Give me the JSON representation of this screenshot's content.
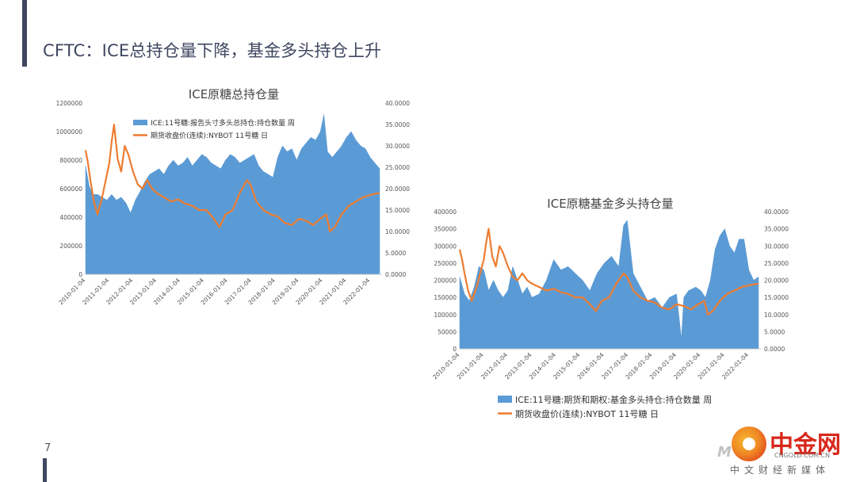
{
  "slide": {
    "title": "CFTC：ICE总持仓量下降，基金多头持仓上升",
    "page_number": "7"
  },
  "logo": {
    "name_cn": "中金网",
    "url": "CNGOLD.COM.CN",
    "subtitle": "中文财经新媒体",
    "brand_colors": [
      "#d9271c",
      "#f08a24",
      "#f7b733"
    ]
  },
  "colors": {
    "bars": "#5b9bd5",
    "line": "#ed7d31",
    "accent": "#3f4660"
  },
  "chart_data": [
    {
      "type": "area",
      "title": "ICE原糖总持仓量",
      "x_tick_labels": [
        "2010-01-04",
        "2011-01-04",
        "2012-01-04",
        "2013-01-04",
        "2014-01-04",
        "2015-01-04",
        "2016-01-04",
        "2017-01-04",
        "2018-01-04",
        "2019-01-04",
        "2020-01-04",
        "2021-01-04",
        "2022-01-04"
      ],
      "x_range": [
        2010.0,
        2022.5
      ],
      "y_left_ticks": [
        "0",
        "200000",
        "400000",
        "600000",
        "800000",
        "1000000",
        "1200000"
      ],
      "y_left_range": [
        0,
        1200000
      ],
      "y_right_ticks": [
        "0.0000",
        "5.0000",
        "10.0000",
        "15.0000",
        "20.0000",
        "25.0000",
        "30.0000",
        "35.0000",
        "40.0000"
      ],
      "y_right_range": [
        0,
        40
      ],
      "legend_position": "top-left (inside plot)",
      "series": [
        {
          "name": "ICE:11号糖:报告头寸多头总持仓:持仓数量 周",
          "kind": "area",
          "axis": "left",
          "color": "#5b9bd5",
          "x": [
            2010.0,
            2010.15,
            2010.3,
            2010.5,
            2010.7,
            2010.9,
            2011.1,
            2011.3,
            2011.5,
            2011.7,
            2011.9,
            2012.1,
            2012.3,
            2012.5,
            2012.7,
            2012.9,
            2013.1,
            2013.3,
            2013.5,
            2013.7,
            2013.9,
            2014.1,
            2014.3,
            2014.5,
            2014.7,
            2014.9,
            2015.1,
            2015.3,
            2015.5,
            2015.7,
            2015.9,
            2016.1,
            2016.3,
            2016.5,
            2016.7,
            2016.9,
            2017.1,
            2017.3,
            2017.5,
            2017.7,
            2017.9,
            2018.1,
            2018.3,
            2018.5,
            2018.7,
            2018.9,
            2019.1,
            2019.3,
            2019.5,
            2019.7,
            2019.9,
            2020.05,
            2020.2,
            2020.4,
            2020.6,
            2020.8,
            2021.0,
            2021.2,
            2021.4,
            2021.6,
            2021.8,
            2022.0,
            2022.2,
            2022.4
          ],
          "y": [
            760000,
            620000,
            560000,
            560000,
            540000,
            520000,
            560000,
            520000,
            540000,
            500000,
            430000,
            520000,
            580000,
            650000,
            700000,
            720000,
            740000,
            700000,
            760000,
            800000,
            760000,
            780000,
            820000,
            760000,
            800000,
            840000,
            820000,
            780000,
            760000,
            740000,
            800000,
            840000,
            820000,
            780000,
            800000,
            820000,
            840000,
            760000,
            720000,
            700000,
            680000,
            820000,
            900000,
            860000,
            880000,
            800000,
            880000,
            920000,
            960000,
            940000,
            1000000,
            1120000,
            860000,
            820000,
            860000,
            900000,
            960000,
            1000000,
            940000,
            900000,
            880000,
            820000,
            780000,
            740000
          ]
        },
        {
          "name": "期货收盘价(连续):NYBOT 11号糖 日",
          "kind": "line",
          "axis": "right",
          "color": "#ed7d31",
          "x": [
            2010.0,
            2010.1,
            2010.2,
            2010.35,
            2010.5,
            2010.7,
            2010.85,
            2011.0,
            2011.1,
            2011.2,
            2011.35,
            2011.5,
            2011.65,
            2011.8,
            2012.0,
            2012.2,
            2012.4,
            2012.6,
            2012.8,
            2013.0,
            2013.3,
            2013.6,
            2013.9,
            2014.2,
            2014.5,
            2014.8,
            2015.1,
            2015.4,
            2015.65,
            2015.9,
            2016.2,
            2016.5,
            2016.8,
            2016.95,
            2017.2,
            2017.5,
            2017.8,
            2018.1,
            2018.4,
            2018.7,
            2019.0,
            2019.3,
            2019.6,
            2019.9,
            2020.15,
            2020.3,
            2020.5,
            2020.8,
            2021.1,
            2021.4,
            2021.7,
            2022.0,
            2022.2,
            2022.4
          ],
          "y": [
            29,
            26,
            22,
            17,
            14,
            18,
            22,
            26,
            31,
            35,
            27,
            24,
            30,
            28,
            24,
            21,
            20,
            22,
            20,
            19,
            18,
            17,
            17.5,
            16.5,
            16,
            15,
            15,
            13,
            11,
            14,
            15,
            19,
            22,
            21,
            17,
            15,
            14,
            13.5,
            12,
            11.5,
            13,
            12.5,
            11.5,
            13,
            14,
            10,
            11,
            14,
            16,
            17,
            18,
            18.5,
            18.8,
            19
          ]
        }
      ]
    },
    {
      "type": "area",
      "title": "ICE原糖基金多头持仓量",
      "x_tick_labels": [
        "2010-01-04",
        "2011-01-04",
        "2012-01-04",
        "2013-01-04",
        "2014-01-04",
        "2015-01-04",
        "2016-01-04",
        "2017-01-04",
        "2018-01-04",
        "2019-01-04",
        "2020-01-04",
        "2021-01-04",
        "2022-01-04"
      ],
      "x_range": [
        2010.0,
        2022.5
      ],
      "y_left_ticks": [
        "0",
        "50000",
        "100000",
        "150000",
        "200000",
        "250000",
        "300000",
        "350000",
        "400000"
      ],
      "y_left_range": [
        0,
        400000
      ],
      "y_right_ticks": [
        "0.0000",
        "5.0000",
        "10.0000",
        "15.0000",
        "20.0000",
        "25.0000",
        "30.0000",
        "35.0000",
        "40.0000"
      ],
      "y_right_range": [
        0,
        40
      ],
      "legend_position": "bottom",
      "series": [
        {
          "name": "ICE:11号糖:期货和期权:基金多头持仓:持仓数量 周",
          "kind": "area",
          "axis": "left",
          "color": "#5b9bd5",
          "x": [
            2010.0,
            2010.2,
            2010.4,
            2010.6,
            2010.8,
            2011.0,
            2011.2,
            2011.4,
            2011.6,
            2011.8,
            2012.0,
            2012.2,
            2012.4,
            2012.6,
            2012.8,
            2013.0,
            2013.3,
            2013.6,
            2013.9,
            2014.2,
            2014.5,
            2014.8,
            2015.1,
            2015.4,
            2015.7,
            2016.0,
            2016.3,
            2016.6,
            2016.8,
            2016.95,
            2017.2,
            2017.5,
            2017.8,
            2018.1,
            2018.4,
            2018.7,
            2019.0,
            2019.2,
            2019.3,
            2019.5,
            2019.8,
            2020.0,
            2020.2,
            2020.4,
            2020.6,
            2020.8,
            2021.0,
            2021.2,
            2021.4,
            2021.6,
            2021.8,
            2022.0,
            2022.2,
            2022.4
          ],
          "y": [
            210000,
            160000,
            140000,
            180000,
            240000,
            230000,
            170000,
            200000,
            170000,
            150000,
            170000,
            240000,
            200000,
            160000,
            180000,
            150000,
            160000,
            200000,
            260000,
            230000,
            240000,
            220000,
            200000,
            170000,
            220000,
            250000,
            270000,
            240000,
            360000,
            375000,
            220000,
            180000,
            140000,
            150000,
            120000,
            150000,
            160000,
            30000,
            150000,
            170000,
            180000,
            170000,
            150000,
            200000,
            290000,
            330000,
            350000,
            300000,
            280000,
            320000,
            320000,
            230000,
            200000,
            210000
          ]
        },
        {
          "name": "期货收盘价(连续):NYBOT 11号糖 日",
          "kind": "line",
          "axis": "right",
          "color": "#ed7d31",
          "x": [
            2010.0,
            2010.1,
            2010.2,
            2010.35,
            2010.5,
            2010.7,
            2010.85,
            2011.0,
            2011.1,
            2011.2,
            2011.35,
            2011.5,
            2011.65,
            2011.8,
            2012.0,
            2012.2,
            2012.4,
            2012.6,
            2012.8,
            2013.0,
            2013.3,
            2013.6,
            2013.9,
            2014.2,
            2014.5,
            2014.8,
            2015.1,
            2015.4,
            2015.65,
            2015.9,
            2016.2,
            2016.5,
            2016.8,
            2016.95,
            2017.2,
            2017.5,
            2017.8,
            2018.1,
            2018.4,
            2018.7,
            2019.0,
            2019.3,
            2019.6,
            2019.9,
            2020.15,
            2020.3,
            2020.5,
            2020.8,
            2021.1,
            2021.4,
            2021.7,
            2022.0,
            2022.2,
            2022.4
          ],
          "y": [
            29,
            26,
            22,
            17,
            14,
            18,
            22,
            26,
            31,
            35,
            27,
            24,
            30,
            28,
            24,
            21,
            20,
            22,
            20,
            19,
            18,
            17,
            17.5,
            16.5,
            16,
            15,
            15,
            13,
            11,
            14,
            15,
            19,
            22,
            21,
            17,
            15,
            14,
            13.5,
            12,
            11.5,
            13,
            12.5,
            11.5,
            13,
            14,
            10,
            11,
            14,
            16,
            17,
            18,
            18.5,
            18.8,
            19
          ]
        }
      ]
    }
  ]
}
